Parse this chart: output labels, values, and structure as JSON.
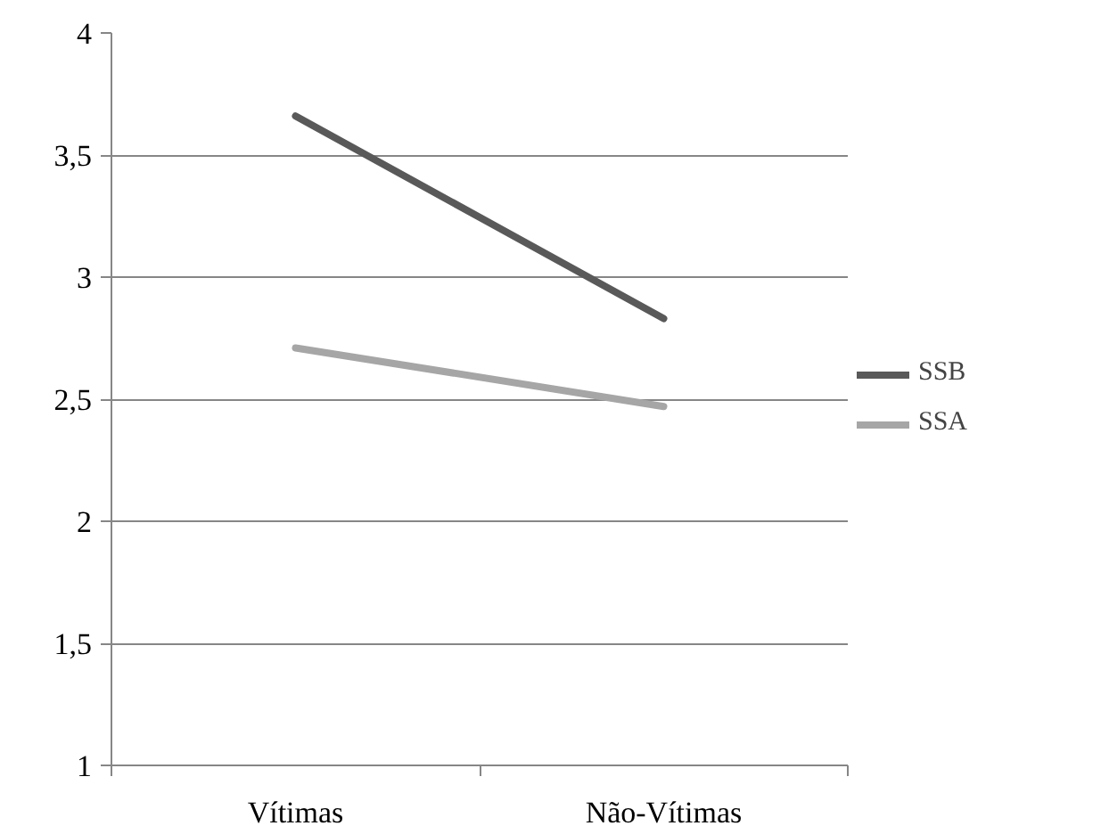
{
  "chart_data": {
    "type": "line",
    "categories": [
      "Vítimas",
      "Não-Vítimas"
    ],
    "series": [
      {
        "name": "SSB",
        "color": "#595959",
        "values": [
          3.66,
          2.83
        ]
      },
      {
        "name": "SSA",
        "color": "#a6a6a6",
        "values": [
          2.71,
          2.47
        ]
      }
    ],
    "ylim": [
      1,
      4
    ],
    "yticks": [
      1,
      {
        "value": 1.5,
        "label": "1,5"
      },
      2,
      {
        "value": 2.5,
        "label": "2,5"
      },
      3,
      {
        "value": 3.5,
        "label": "3,5"
      },
      4
    ],
    "grid": "y",
    "legend": "right",
    "marker": "none",
    "line_style": "solid"
  }
}
